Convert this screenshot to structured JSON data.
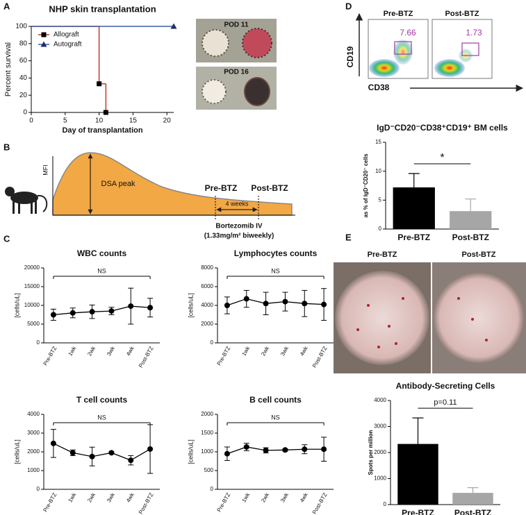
{
  "figure": {
    "panel_labels": [
      "A",
      "B",
      "C",
      "D",
      "E"
    ],
    "photos_a": [
      "POD 11",
      "POD 16"
    ],
    "diagram_b": {
      "y_label": "MFI",
      "peak": "DSA peak",
      "pre": "Pre-BTZ",
      "post": "Post-BTZ",
      "interval": "4 weeks",
      "treatment": "Bortezomib IV",
      "dose": "(1.33mg/m² biweekly)"
    },
    "flow_d": {
      "plots": [
        {
          "title": "Pre-BTZ",
          "gate_percent": 7.66
        },
        {
          "title": "Post-BTZ",
          "gate_percent": 1.73
        }
      ],
      "y_label": "CD19",
      "x_label": "CD38"
    },
    "photos_e": [
      "Pre-BTZ",
      "Post-BTZ"
    ]
  },
  "chart_data": [
    {
      "type": "line",
      "title": "NHP skin transplantation",
      "xlabel": "Day of transplantation",
      "ylabel": "Percent survival",
      "step": true,
      "xlim": [
        0,
        21
      ],
      "xticks": [
        0,
        5,
        10,
        15,
        20
      ],
      "ylim": [
        0,
        100
      ],
      "yticks": [
        0,
        20,
        40,
        60,
        80,
        100
      ],
      "legend": "upper left",
      "series": [
        {
          "name": "Allograft",
          "color": "#c0392b",
          "marker": "square",
          "marker_color": "#000000",
          "x": [
            0,
            10,
            11
          ],
          "values": [
            100,
            33.3,
            0
          ]
        },
        {
          "name": "Autograft",
          "color": "#3a5fa8",
          "marker": "triangle",
          "marker_color": "#1f2d6b",
          "x": [
            0,
            21
          ],
          "values": [
            100,
            100
          ]
        }
      ]
    },
    {
      "type": "bar",
      "title": "IgD⁻CD20⁻CD38⁺CD19⁺ BM cells",
      "ylabel": "as % of IgD⁻CD20⁻ cells",
      "categories": [
        "Pre-BTZ",
        "Post-BTZ"
      ],
      "values": [
        7.2,
        3.1
      ],
      "errors": [
        2.4,
        2.1
      ],
      "colors": [
        "#000000",
        "#a6a6a6"
      ],
      "ylim": [
        0,
        15
      ],
      "yticks": [
        0,
        5,
        10,
        15
      ],
      "annotation": "*"
    },
    {
      "type": "line",
      "title": "WBC counts",
      "ylabel": "[cells/uL]",
      "categories": [
        "Pre-BTZ",
        "1wk",
        "2wk",
        "3wk",
        "4wk",
        "Post-BTZ"
      ],
      "values": [
        7500,
        8000,
        8300,
        8500,
        9800,
        9400
      ],
      "errors": [
        1500,
        1300,
        1800,
        1000,
        4800,
        2500
      ],
      "color": "#000000",
      "ylim": [
        0,
        20000
      ],
      "yticks": [
        0,
        5000,
        10000,
        15000,
        20000
      ],
      "annotation": "NS"
    },
    {
      "type": "line",
      "title": "Lymphocytes counts",
      "ylabel": "[cells/uL]",
      "categories": [
        "Pre-BTZ",
        "1wk",
        "2wk",
        "3wk",
        "4wk",
        "Post-BTZ"
      ],
      "values": [
        4000,
        4700,
        4200,
        4400,
        4200,
        4100
      ],
      "errors": [
        900,
        900,
        1200,
        1000,
        1400,
        1700
      ],
      "color": "#000000",
      "ylim": [
        0,
        8000
      ],
      "yticks": [
        0,
        2000,
        4000,
        6000,
        8000
      ],
      "annotation": "NS"
    },
    {
      "type": "line",
      "title": "T cell counts",
      "ylabel": "[cells/uL]",
      "categories": [
        "Pre-BTZ",
        "1wk",
        "2wk",
        "3wk",
        "4wk",
        "Post-BTZ"
      ],
      "values": [
        2450,
        1950,
        1750,
        1950,
        1550,
        2150
      ],
      "errors": [
        750,
        150,
        500,
        50,
        250,
        1300
      ],
      "color": "#000000",
      "ylim": [
        0,
        4000
      ],
      "yticks": [
        0,
        1000,
        2000,
        3000,
        4000
      ],
      "annotation": "NS"
    },
    {
      "type": "line",
      "title": "B cell counts",
      "ylabel": "[cells/uL]",
      "categories": [
        "Pre-BTZ",
        "1wk",
        "2wk",
        "3wk",
        "4wk",
        "Post-BTZ"
      ],
      "values": [
        950,
        1130,
        1040,
        1050,
        1070,
        1070
      ],
      "errors": [
        180,
        100,
        70,
        30,
        120,
        320
      ],
      "color": "#000000",
      "ylim": [
        0,
        2000
      ],
      "yticks": [
        0,
        500,
        1000,
        1500,
        2000
      ],
      "annotation": "NS"
    },
    {
      "type": "bar",
      "title": "Antibody-Secreting Cells",
      "ylabel": "Spots per million",
      "categories": [
        "Pre-BTZ",
        "Post-BTZ"
      ],
      "values": [
        2330,
        450
      ],
      "errors": [
        1000,
        200
      ],
      "colors": [
        "#000000",
        "#a6a6a6"
      ],
      "ylim": [
        0,
        4000
      ],
      "yticks": [
        0,
        1000,
        2000,
        3000,
        4000
      ],
      "annotation": "p=0.11"
    }
  ]
}
